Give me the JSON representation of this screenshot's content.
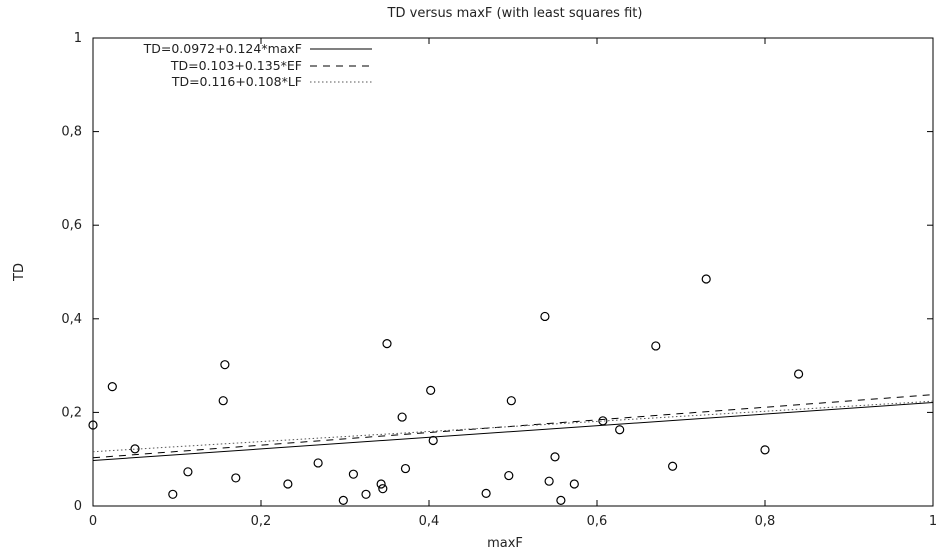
{
  "chart_data": {
    "type": "scatter",
    "title": "TD versus maxF (with least squares fit)",
    "xlabel": "maxF",
    "ylabel": "TD",
    "xlim": [
      0,
      1
    ],
    "ylim": [
      0,
      1
    ],
    "x_ticks": [
      "0",
      "0,2",
      "0,4",
      "0,6",
      "0,8",
      "1"
    ],
    "y_ticks": [
      "0",
      "0,2",
      "0,4",
      "0,6",
      "0,8",
      "1"
    ],
    "grid": false,
    "legend_position": "top-left",
    "points": {
      "x": [
        0.0,
        0.023,
        0.05,
        0.095,
        0.113,
        0.155,
        0.157,
        0.17,
        0.232,
        0.268,
        0.298,
        0.31,
        0.325,
        0.343,
        0.345,
        0.35,
        0.368,
        0.372,
        0.402,
        0.405,
        0.468,
        0.495,
        0.498,
        0.538,
        0.543,
        0.55,
        0.557,
        0.573,
        0.607,
        0.627,
        0.67,
        0.69,
        0.73,
        0.8,
        0.84
      ],
      "y": [
        0.173,
        0.255,
        0.122,
        0.025,
        0.073,
        0.225,
        0.302,
        0.06,
        0.047,
        0.092,
        0.012,
        0.068,
        0.025,
        0.047,
        0.037,
        0.347,
        0.19,
        0.08,
        0.247,
        0.14,
        0.027,
        0.065,
        0.225,
        0.405,
        0.053,
        0.105,
        0.012,
        0.047,
        0.182,
        0.163,
        0.342,
        0.085,
        0.485,
        0.12,
        0.282
      ]
    },
    "series": [
      {
        "name": "TD=0.0972+0.124*maxF",
        "intercept": 0.0972,
        "slope": 0.124,
        "style": "solid"
      },
      {
        "name": "TD=0.103+0.135*EF",
        "intercept": 0.103,
        "slope": 0.135,
        "style": "dashed"
      },
      {
        "name": "TD=0.116+0.108*LF",
        "intercept": 0.116,
        "slope": 0.108,
        "style": "dotted"
      }
    ]
  }
}
